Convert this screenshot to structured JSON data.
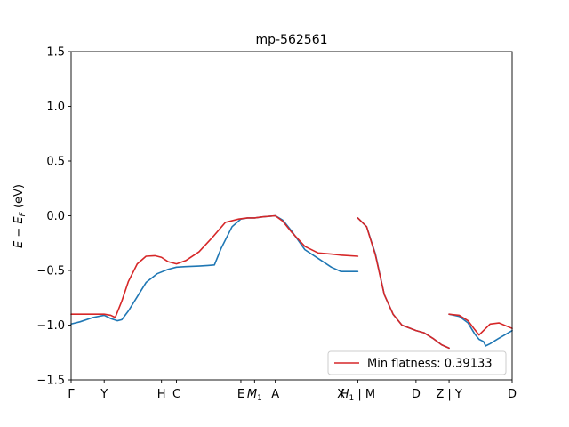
{
  "chart_data": {
    "type": "line",
    "title": "mp-562561",
    "xlabel": "",
    "ylabel": "E − E_F (eV)",
    "ylim": [
      -1.5,
      1.5
    ],
    "xlim": [
      0,
      1
    ],
    "grid": false,
    "yticks": [
      {
        "value": 1.5,
        "label": "1.5"
      },
      {
        "value": 1.0,
        "label": "1.0"
      },
      {
        "value": 0.5,
        "label": "0.5"
      },
      {
        "value": 0.0,
        "label": "0.0"
      },
      {
        "value": -0.5,
        "label": "−0.5"
      },
      {
        "value": -1.0,
        "label": "−1.0"
      },
      {
        "value": -1.5,
        "label": "−1.5"
      }
    ],
    "xticks": [
      {
        "value": 0.0,
        "label": "Γ"
      },
      {
        "value": 0.075,
        "label": "Y"
      },
      {
        "value": 0.205,
        "label": "H"
      },
      {
        "value": 0.239,
        "label": "C"
      },
      {
        "value": 0.385,
        "label": "E"
      },
      {
        "value": 0.416,
        "label": "M1"
      },
      {
        "value": 0.463,
        "label": "A"
      },
      {
        "value": 0.612,
        "label": "X"
      },
      {
        "value": 0.65,
        "label": "H1 | M"
      },
      {
        "value": 0.782,
        "label": "D"
      },
      {
        "value": 0.857,
        "label": "Z | Y"
      },
      {
        "value": 1.0,
        "label": "D"
      }
    ],
    "legend": {
      "location": "lower right",
      "entries": [
        {
          "label": "Min flatness: 0.39133",
          "color": "#d62728"
        }
      ]
    },
    "series": [
      {
        "color": "#1f77b4",
        "segments": [
          {
            "x": [
              0.0,
              0.02,
              0.05,
              0.075,
              0.09,
              0.105,
              0.115,
              0.13,
              0.15,
              0.17,
              0.195,
              0.22,
              0.239,
              0.26,
              0.29,
              0.31,
              0.325,
              0.34,
              0.365,
              0.385,
              0.4,
              0.416,
              0.435,
              0.463,
              0.48,
              0.5,
              0.53,
              0.56,
              0.59,
              0.612,
              0.65
            ],
            "y": [
              -0.99,
              -0.97,
              -0.93,
              -0.91,
              -0.94,
              -0.96,
              -0.95,
              -0.87,
              -0.74,
              -0.61,
              -0.53,
              -0.49,
              -0.47,
              -0.465,
              -0.46,
              -0.455,
              -0.45,
              -0.3,
              -0.1,
              -0.03,
              -0.02,
              -0.02,
              -0.01,
              0.0,
              -0.04,
              -0.14,
              -0.31,
              -0.39,
              -0.47,
              -0.51,
              -0.51
            ]
          },
          {
            "x": [
              0.65,
              0.67,
              0.69,
              0.71,
              0.73,
              0.75,
              0.782,
              0.8,
              0.82,
              0.84,
              0.857
            ],
            "y": [
              -0.02,
              -0.1,
              -0.35,
              -0.72,
              -0.9,
              -1.0,
              -1.05,
              -1.07,
              -1.12,
              -1.18,
              -1.21
            ]
          },
          {
            "x": [
              0.857,
              0.88,
              0.9,
              0.915,
              0.925,
              0.935,
              0.94,
              0.95,
              0.97,
              1.0
            ],
            "y": [
              -0.9,
              -0.92,
              -0.98,
              -1.08,
              -1.13,
              -1.15,
              -1.19,
              -1.17,
              -1.12,
              -1.05
            ]
          }
        ]
      },
      {
        "color": "#d62728",
        "segments": [
          {
            "x": [
              0.0,
              0.02,
              0.05,
              0.075,
              0.09,
              0.1,
              0.115,
              0.13,
              0.15,
              0.17,
              0.19,
              0.205,
              0.22,
              0.239,
              0.26,
              0.29,
              0.32,
              0.35,
              0.38,
              0.4,
              0.416,
              0.435,
              0.463,
              0.48,
              0.5,
              0.53,
              0.56,
              0.59,
              0.612,
              0.65
            ],
            "y": [
              -0.9,
              -0.9,
              -0.9,
              -0.9,
              -0.91,
              -0.93,
              -0.78,
              -0.6,
              -0.44,
              -0.37,
              -0.365,
              -0.38,
              -0.42,
              -0.44,
              -0.41,
              -0.33,
              -0.2,
              -0.06,
              -0.03,
              -0.02,
              -0.02,
              -0.01,
              0.0,
              -0.05,
              -0.15,
              -0.28,
              -0.34,
              -0.35,
              -0.36,
              -0.37
            ]
          },
          {
            "x": [
              0.65,
              0.67,
              0.69,
              0.71,
              0.73,
              0.75,
              0.782,
              0.8,
              0.82,
              0.84,
              0.857
            ],
            "y": [
              -0.02,
              -0.1,
              -0.36,
              -0.72,
              -0.9,
              -1.0,
              -1.05,
              -1.07,
              -1.12,
              -1.18,
              -1.21
            ]
          },
          {
            "x": [
              0.857,
              0.88,
              0.9,
              0.915,
              0.925,
              0.935,
              0.95,
              0.97,
              1.0
            ],
            "y": [
              -0.9,
              -0.91,
              -0.96,
              -1.04,
              -1.09,
              -1.05,
              -0.99,
              -0.98,
              -1.03
            ]
          }
        ]
      }
    ]
  }
}
